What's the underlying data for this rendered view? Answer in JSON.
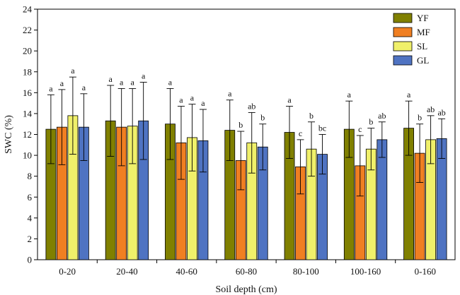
{
  "chart_data": {
    "type": "bar",
    "title": "",
    "xlabel": "Soil depth (cm)",
    "ylabel": "SWC (%)",
    "ylim": [
      0,
      24
    ],
    "yticks": [
      0,
      2,
      4,
      6,
      8,
      10,
      12,
      14,
      16,
      18,
      20,
      22,
      24
    ],
    "grid": false,
    "legend_position": "top-right",
    "categories": [
      "0-20",
      "20-40",
      "40-60",
      "60-80",
      "80-100",
      "100-160",
      "0-160"
    ],
    "series": [
      {
        "name": "YF",
        "color": "#808000",
        "values": [
          12.5,
          13.3,
          13.0,
          12.4,
          12.2,
          12.5,
          12.6
        ],
        "errors": [
          3.3,
          3.4,
          3.4,
          2.9,
          2.5,
          2.7,
          2.6
        ],
        "labels": [
          "a",
          "a",
          "a",
          "a",
          "a",
          "a",
          "a"
        ]
      },
      {
        "name": "MF",
        "color": "#F07F22",
        "values": [
          12.7,
          12.7,
          11.2,
          9.5,
          8.9,
          9.0,
          10.2
        ],
        "errors": [
          3.6,
          3.7,
          3.5,
          2.8,
          2.6,
          2.9,
          2.8
        ],
        "labels": [
          "a",
          "a",
          "a",
          "b",
          "c",
          "c",
          "b"
        ]
      },
      {
        "name": "SL",
        "color": "#F0F06A",
        "values": [
          13.8,
          12.8,
          11.7,
          11.2,
          10.6,
          10.6,
          11.5
        ],
        "errors": [
          3.7,
          3.6,
          3.2,
          2.9,
          2.6,
          2.0,
          2.3
        ],
        "labels": [
          "a",
          "a",
          "a",
          "ab",
          "b",
          "b",
          "ab"
        ]
      },
      {
        "name": "GL",
        "color": "#4F73C2",
        "values": [
          12.7,
          13.3,
          11.4,
          10.8,
          10.1,
          11.5,
          11.6
        ],
        "errors": [
          3.2,
          3.7,
          3.0,
          2.2,
          1.9,
          1.7,
          1.9
        ],
        "labels": [
          "a",
          "a",
          "a",
          "b",
          "bc",
          "ab",
          "ab"
        ]
      }
    ]
  }
}
